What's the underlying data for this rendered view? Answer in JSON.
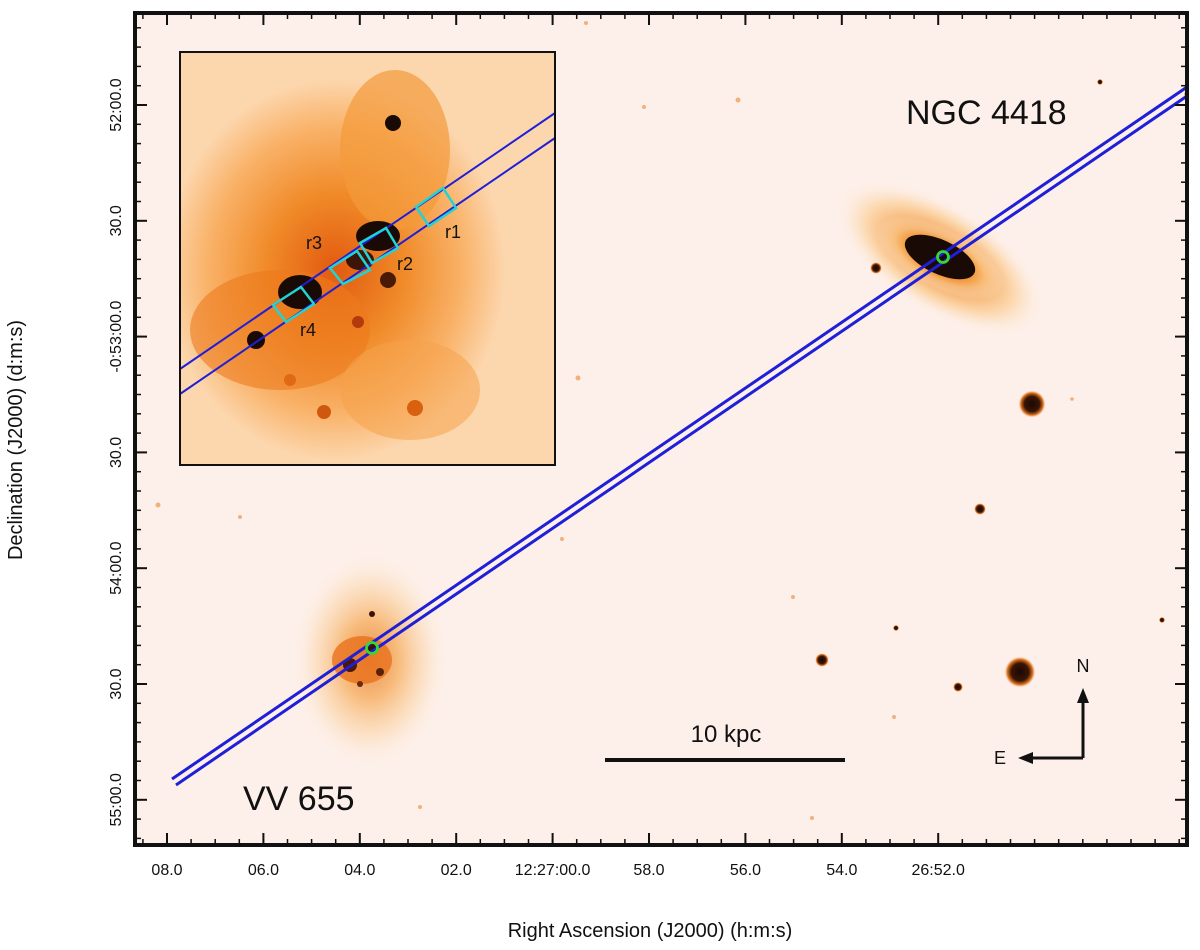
{
  "figure": {
    "x_axis_title": "Right Ascension (J2000) (h:m:s)",
    "y_axis_title": "Declination (J2000) (d:m:s)",
    "x_ticks": [
      "08.0",
      "06.0",
      "04.0",
      "02.0",
      "12:27:00.0",
      "58.0",
      "56.0",
      "54.0",
      "26:52.0"
    ],
    "y_ticks": [
      "52:00.0",
      "30.0",
      "-0:53:00.0",
      "30.0",
      "54:00.0",
      "30.0",
      "55:00.0"
    ],
    "objects": {
      "ngc": "NGC 4418",
      "vv": "VV 655"
    },
    "scale_bar_label": "10 kpc",
    "compass": {
      "north": "N",
      "east": "E"
    },
    "inset_regions": [
      "r1",
      "r2",
      "r3",
      "r4"
    ],
    "colors": {
      "sky": "#fdf0ea",
      "slit": "#1f1fd8",
      "region_box": "#22d3d3",
      "marker": "#35d635",
      "galaxy_core": "#1a0a05",
      "halo": "#f59a2a"
    }
  }
}
